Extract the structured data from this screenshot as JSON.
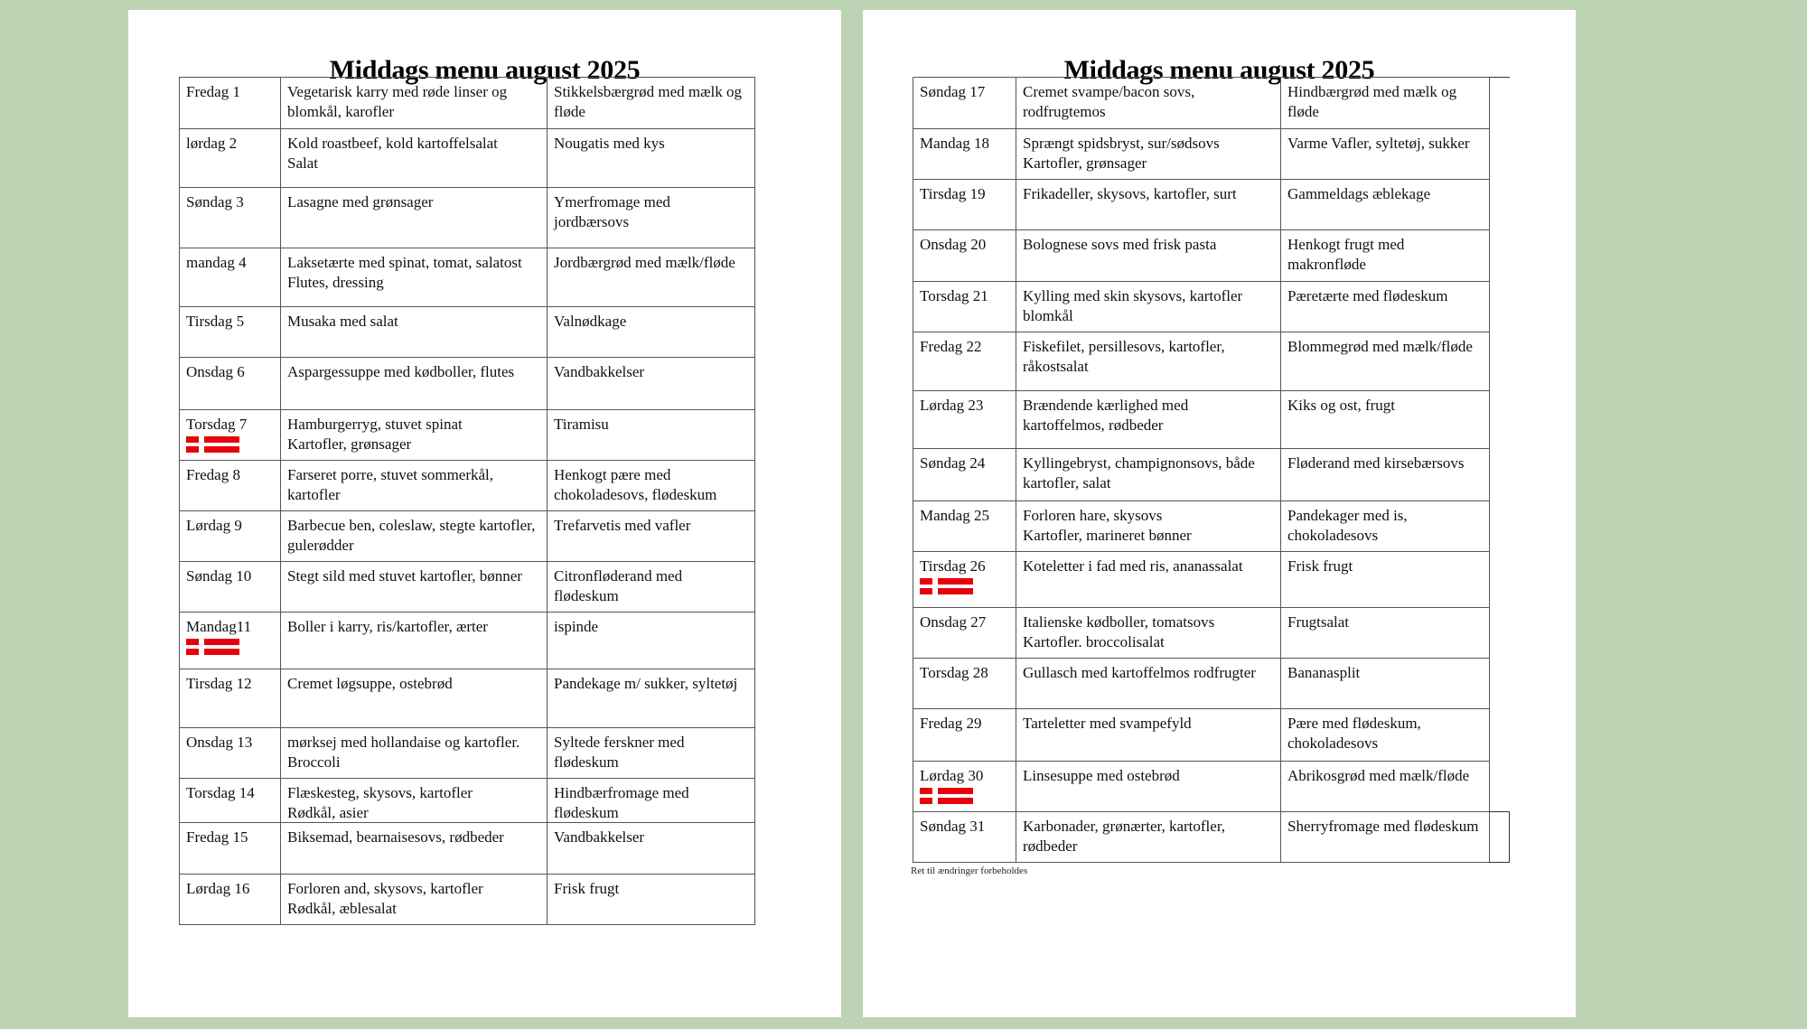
{
  "pages": [
    {
      "title": "Middags menu august 2025",
      "rows": [
        {
          "day": "Fredag 1",
          "main": "Vegetarisk karry med røde linser og blomkål, karofler",
          "dessert": "Stikkelsbærgrød med mælk og fløde"
        },
        {
          "day": "lørdag 2",
          "main": "Kold roastbeef, kold kartoffelsalat\nSalat",
          "dessert": "Nougatis med kys"
        },
        {
          "day": "Søndag 3",
          "main": "Lasagne med grønsager",
          "dessert": "Ymerfromage med jordbærsovs"
        },
        {
          "day": "mandag 4",
          "main": "Laksetærte med spinat, tomat, salatost\nFlutes, dressing",
          "dessert": "Jordbærgrød med mælk/fløde"
        },
        {
          "day": "Tirsdag 5",
          "main": "Musaka med salat",
          "dessert": "Valnødkage"
        },
        {
          "day": "Onsdag 6",
          "main": "Aspargessuppe med kødboller, flutes",
          "dessert": "Vandbakkelser"
        },
        {
          "day": "Torsdag 7",
          "flag": true,
          "main": "Hamburgerryg, stuvet spinat\nKartofler, grønsager",
          "dessert": "Tiramisu"
        },
        {
          "day": "Fredag 8",
          "main": "Farseret porre, stuvet sommerkål, kartofler",
          "dessert": "Henkogt pære med chokoladesovs, flødeskum"
        },
        {
          "day": "Lørdag 9",
          "main": "Barbecue ben, coleslaw, stegte kartofler, gulerødder",
          "dessert": "Trefarvetis med vafler"
        },
        {
          "day": "Søndag 10",
          "main": "Stegt sild med stuvet kartofler, bønner",
          "dessert": "Citronfløderand med flødeskum"
        },
        {
          "day": "Mandag11",
          "flag": true,
          "main": "Boller i karry, ris/kartofler, ærter",
          "dessert": "ispinde"
        },
        {
          "day": "Tirsdag 12",
          "main": "Cremet løgsuppe, ostebrød",
          "dessert": "Pandekage m/ sukker, syltetøj"
        },
        {
          "day": "Onsdag 13",
          "main": "mørksej med hollandaise og kartofler. Broccoli",
          "dessert": "Syltede ferskner med flødeskum"
        },
        {
          "day": "Torsdag 14",
          "main": "Flæskesteg, skysovs, kartofler\nRødkål, asier",
          "dessert": "Hindbærfromage med flødeskum"
        },
        {
          "day": "Fredag 15",
          "main": "Biksemad, bearnaisesovs, rødbeder",
          "dessert": "Vandbakkelser"
        },
        {
          "day": "Lørdag 16",
          "main": "Forloren and, skysovs, kartofler\nRødkål, æblesalat",
          "dessert": "Frisk frugt"
        }
      ]
    },
    {
      "title": "Middags menu august 2025",
      "rows": [
        {
          "day": "Søndag 17",
          "main": "Cremet svampe/bacon sovs, rodfrugtemos",
          "dessert": "Hindbærgrød med mælk og fløde"
        },
        {
          "day": "Mandag 18",
          "main": "Sprængt spidsbryst, sur/sødsovs\nKartofler, grønsager",
          "dessert": "Varme Vafler, syltetøj, sukker"
        },
        {
          "day": "Tirsdag 19",
          "main": "Frikadeller, skysovs, kartofler, surt",
          "dessert": "Gammeldags æblekage"
        },
        {
          "day": "Onsdag 20",
          "main": "Bolognese sovs med frisk pasta",
          "dessert": "Henkogt frugt med makronfløde"
        },
        {
          "day": "Torsdag 21",
          "main": "Kylling med skin skysovs, kartofler blomkål",
          "dessert": "Pæretærte med flødeskum"
        },
        {
          "day": "Fredag 22",
          "main": "Fiskefilet, persillesovs, kartofler, råkostsalat",
          "dessert": "Blommegrød med mælk/fløde"
        },
        {
          "day": "Lørdag 23",
          "main": "Brændende kærlighed med kartoffelmos, rødbeder",
          "dessert": "Kiks og ost, frugt"
        },
        {
          "day": "Søndag 24",
          "main": "Kyllingebryst, champignonsovs, både kartofler, salat",
          "dessert": "Fløderand med kirsebærsovs"
        },
        {
          "day": "Mandag 25",
          "main": "Forloren hare, skysovs\nKartofler, marineret bønner",
          "dessert": "Pandekager med is, chokoladesovs"
        },
        {
          "day": "Tirsdag 26",
          "flag": true,
          "main": "Koteletter i fad med ris, ananassalat",
          "dessert": "Frisk frugt"
        },
        {
          "day": "Onsdag 27",
          "main": "Italienske kødboller, tomatsovs\nKartofler. broccolisalat",
          "dessert": "Frugtsalat"
        },
        {
          "day": "Torsdag 28",
          "main": "Gullasch med kartoffelmos rodfrugter",
          "dessert": "Bananasplit"
        },
        {
          "day": "Fredag 29",
          "main": "Tarteletter med svampefyld",
          "dessert": "Pære med flødeskum, chokoladesovs"
        },
        {
          "day": "Lørdag 30",
          "flag": true,
          "main": "Linsesuppe med ostebrød",
          "dessert": "Abrikosgrød med mælk/fløde"
        },
        {
          "day": "Søndag 31",
          "main": "Karbonader, grønærter, kartofler, rødbeder",
          "dessert": "Sherryfromage med flødeskum"
        }
      ],
      "footnote": "Ret til ændringer forbeholdes"
    }
  ],
  "colors": {
    "background": "#bcd3b4",
    "flag": "#e8000b"
  },
  "icons": {
    "flag": "danish-flag-icon"
  }
}
